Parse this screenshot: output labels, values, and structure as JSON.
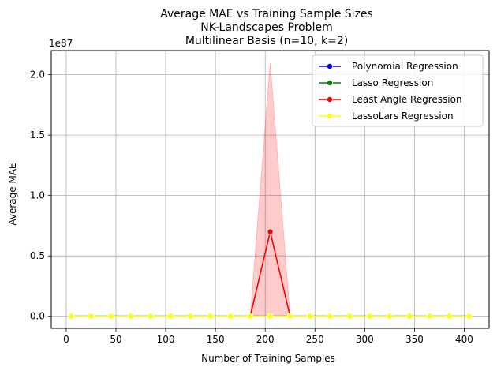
{
  "chart_data": {
    "type": "line",
    "title_lines": [
      "Average MAE vs Training Sample Sizes",
      "NK-Landscapes Problem",
      "Multilinear Basis (n=10, k=2)"
    ],
    "xlabel": "Number of Training Samples",
    "ylabel": "Average MAE",
    "y_offset_label": "1e87",
    "xlim": [
      -15,
      425
    ],
    "ylim": [
      -0.1,
      2.2
    ],
    "x_ticks": [
      0,
      50,
      100,
      150,
      200,
      250,
      300,
      350,
      400
    ],
    "y_ticks": [
      0.0,
      0.5,
      1.0,
      1.5,
      2.0
    ],
    "x_tick_labels": [
      "0",
      "50",
      "100",
      "150",
      "200",
      "250",
      "300",
      "350",
      "400"
    ],
    "y_tick_labels": [
      "0.0",
      "0.5",
      "1.0",
      "1.5",
      "2.0"
    ],
    "grid": true,
    "legend_position": "top-right",
    "series": [
      {
        "name": "Polynomial Regression",
        "color": "#0000ff",
        "x": [
          5,
          25,
          45,
          65,
          85,
          105,
          125,
          145,
          165,
          185,
          205,
          225,
          245,
          265,
          285,
          305,
          325,
          345,
          365,
          385,
          405
        ],
        "y": [
          0,
          0,
          0,
          0,
          0,
          0,
          0,
          0,
          0,
          0,
          0,
          0,
          0,
          0,
          0,
          0,
          0,
          0,
          0,
          0,
          0
        ],
        "markers": false
      },
      {
        "name": "Lasso Regression",
        "color": "#008000",
        "x": [
          5,
          25,
          45,
          65,
          85,
          105,
          125,
          145,
          165,
          185,
          205,
          225,
          245,
          265,
          285,
          305,
          325,
          345,
          365,
          385,
          405
        ],
        "y": [
          0,
          0,
          0,
          0,
          0,
          0,
          0,
          0,
          0,
          0,
          0,
          0,
          0,
          0,
          0,
          0,
          0,
          0,
          0,
          0,
          0
        ],
        "markers": false
      },
      {
        "name": "Least Angle Regression",
        "color": "#ff0000",
        "x": [
          185,
          205,
          225
        ],
        "y": [
          0.0,
          0.7,
          0.0
        ],
        "band_upper": [
          0.0,
          2.1,
          0.0
        ],
        "band_lower": [
          0.0,
          0.0,
          0.0
        ],
        "band_color": "#ff0000",
        "markers": true,
        "marker_x": [
          205
        ],
        "marker_y": [
          0.7
        ]
      },
      {
        "name": "LassoLars Regression",
        "color": "#ffff00",
        "x": [
          5,
          25,
          45,
          65,
          85,
          105,
          125,
          145,
          165,
          185,
          205,
          225,
          245,
          265,
          285,
          305,
          325,
          345,
          365,
          385,
          405
        ],
        "y": [
          0,
          0,
          0,
          0,
          0,
          0,
          0,
          0,
          0,
          0,
          0,
          0,
          0,
          0,
          0,
          0,
          0,
          0,
          0,
          0,
          0
        ],
        "markers": true
      }
    ]
  }
}
